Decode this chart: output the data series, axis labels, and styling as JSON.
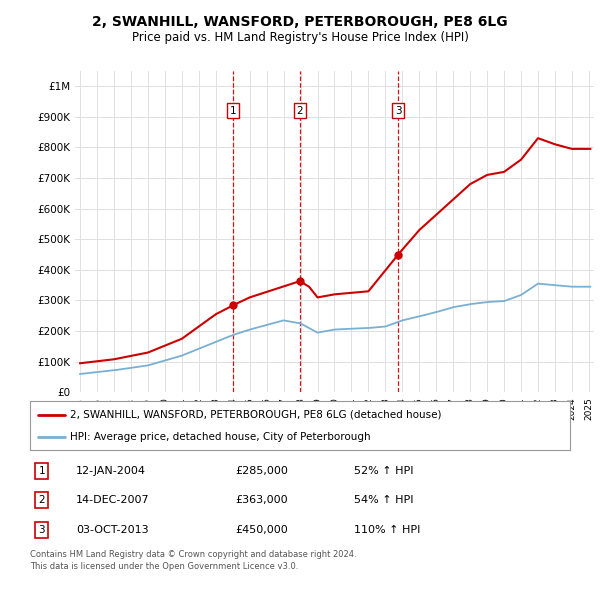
{
  "title": "2, SWANHILL, WANSFORD, PETERBOROUGH, PE8 6LG",
  "subtitle": "Price paid vs. HM Land Registry's House Price Index (HPI)",
  "legend_line1": "2, SWANHILL, WANSFORD, PETERBOROUGH, PE8 6LG (detached house)",
  "legend_line2": "HPI: Average price, detached house, City of Peterborough",
  "sales": [
    {
      "num": 1,
      "date": "2004-01-12",
      "price": 285000,
      "hpi_pct": "52% ↑ HPI"
    },
    {
      "num": 2,
      "date": "2007-12-14",
      "price": 363000,
      "hpi_pct": "54% ↑ HPI"
    },
    {
      "num": 3,
      "date": "2013-10-03",
      "price": 450000,
      "hpi_pct": "110% ↑ HPI"
    }
  ],
  "table_dates": [
    "12-JAN-2004",
    "14-DEC-2007",
    "03-OCT-2013"
  ],
  "table_prices": [
    "£285,000",
    "£363,000",
    "£450,000"
  ],
  "table_hpi": [
    "52% ↑ HPI",
    "54% ↑ HPI",
    "110% ↑ HPI"
  ],
  "footer_line1": "Contains HM Land Registry data © Crown copyright and database right 2024.",
  "footer_line2": "This data is licensed under the Open Government Licence v3.0.",
  "red_color": "#cc0000",
  "blue_color": "#7aafd4",
  "background_color": "#ffffff",
  "grid_color": "#e0e0e0",
  "ylim_max": 1050000,
  "x_start_year": 1995,
  "x_end_year": 2025
}
